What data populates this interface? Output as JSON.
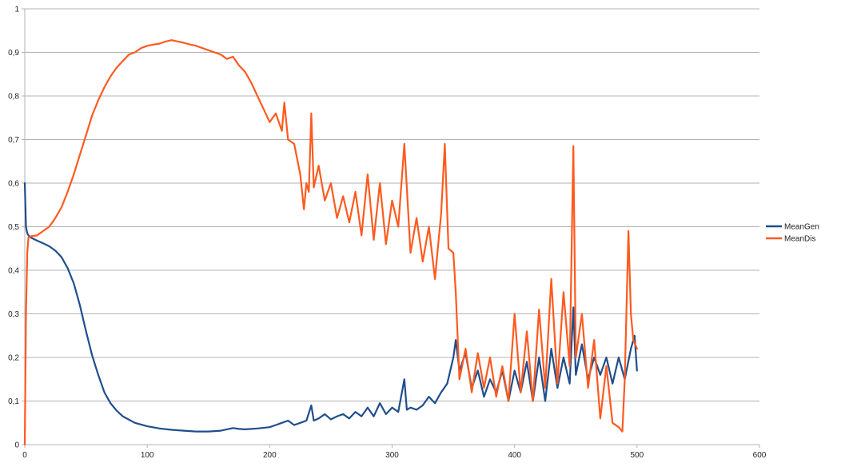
{
  "chart_data": {
    "type": "line",
    "title": "",
    "xlabel": "",
    "ylabel": "",
    "xlim": [
      0,
      600
    ],
    "ylim": [
      0,
      1
    ],
    "xticks": [
      0,
      100,
      200,
      300,
      400,
      500,
      600
    ],
    "yticks": [
      0,
      0.1,
      0.2,
      0.3,
      0.4,
      0.5,
      0.6,
      0.7,
      0.8,
      0.9,
      1
    ],
    "xtick_labels": [
      "0",
      "100",
      "200",
      "300",
      "400",
      "500",
      "600"
    ],
    "ytick_labels": [
      "0",
      "0,1",
      "0,2",
      "0,3",
      "0,4",
      "0,5",
      "0,6",
      "0,7",
      "0,8",
      "0,9",
      "1"
    ],
    "grid": "horizontal",
    "legend_position": "right",
    "series": [
      {
        "name": "MeanGen",
        "color": "#1f4e8c",
        "x": [
          0,
          1,
          2,
          3,
          5,
          10,
          15,
          20,
          25,
          30,
          35,
          40,
          45,
          50,
          55,
          60,
          65,
          70,
          75,
          80,
          90,
          100,
          110,
          120,
          130,
          140,
          150,
          160,
          170,
          175,
          180,
          190,
          200,
          205,
          210,
          215,
          220,
          225,
          230,
          234,
          236,
          240,
          245,
          250,
          255,
          260,
          265,
          270,
          275,
          280,
          285,
          290,
          295,
          300,
          305,
          310,
          312,
          315,
          320,
          325,
          330,
          335,
          340,
          345,
          350,
          352,
          355,
          360,
          365,
          370,
          375,
          380,
          385,
          390,
          395,
          400,
          405,
          410,
          415,
          420,
          425,
          430,
          435,
          440,
          445,
          448,
          450,
          455,
          460,
          465,
          470,
          475,
          480,
          485,
          490,
          495,
          498,
          500
        ],
        "values": [
          0.6,
          0.5,
          0.485,
          0.48,
          0.475,
          0.468,
          0.462,
          0.455,
          0.445,
          0.43,
          0.405,
          0.37,
          0.32,
          0.26,
          0.205,
          0.16,
          0.12,
          0.095,
          0.078,
          0.065,
          0.05,
          0.042,
          0.037,
          0.034,
          0.032,
          0.03,
          0.03,
          0.032,
          0.038,
          0.036,
          0.035,
          0.037,
          0.04,
          0.045,
          0.05,
          0.055,
          0.045,
          0.05,
          0.055,
          0.09,
          0.055,
          0.06,
          0.07,
          0.058,
          0.065,
          0.07,
          0.06,
          0.075,
          0.065,
          0.085,
          0.065,
          0.095,
          0.07,
          0.085,
          0.075,
          0.15,
          0.08,
          0.085,
          0.08,
          0.09,
          0.11,
          0.095,
          0.12,
          0.14,
          0.2,
          0.24,
          0.17,
          0.21,
          0.13,
          0.17,
          0.11,
          0.15,
          0.12,
          0.17,
          0.1,
          0.17,
          0.12,
          0.19,
          0.1,
          0.2,
          0.1,
          0.22,
          0.13,
          0.2,
          0.14,
          0.315,
          0.16,
          0.23,
          0.15,
          0.2,
          0.16,
          0.2,
          0.14,
          0.2,
          0.15,
          0.22,
          0.25,
          0.17
        ]
      },
      {
        "name": "MeanDis",
        "color": "#ff5a1f",
        "x": [
          0,
          1,
          2,
          3,
          5,
          10,
          15,
          20,
          25,
          30,
          35,
          40,
          45,
          50,
          55,
          60,
          65,
          70,
          75,
          80,
          85,
          90,
          95,
          100,
          105,
          110,
          115,
          120,
          125,
          130,
          135,
          140,
          145,
          150,
          155,
          160,
          165,
          170,
          175,
          180,
          185,
          190,
          195,
          200,
          205,
          210,
          212,
          215,
          220,
          225,
          228,
          230,
          232,
          234,
          236,
          240,
          245,
          250,
          255,
          260,
          265,
          270,
          275,
          280,
          285,
          290,
          295,
          300,
          305,
          310,
          315,
          320,
          325,
          330,
          335,
          340,
          343,
          346,
          350,
          352,
          355,
          360,
          365,
          370,
          375,
          380,
          385,
          390,
          395,
          400,
          405,
          410,
          415,
          420,
          425,
          430,
          435,
          440,
          445,
          448,
          450,
          455,
          460,
          465,
          470,
          475,
          480,
          485,
          488,
          490,
          493,
          495,
          497,
          500
        ],
        "values": [
          0.0,
          0.3,
          0.44,
          0.475,
          0.478,
          0.48,
          0.49,
          0.5,
          0.52,
          0.545,
          0.58,
          0.62,
          0.665,
          0.71,
          0.755,
          0.79,
          0.82,
          0.845,
          0.865,
          0.88,
          0.895,
          0.9,
          0.91,
          0.915,
          0.918,
          0.92,
          0.925,
          0.928,
          0.925,
          0.922,
          0.918,
          0.915,
          0.91,
          0.905,
          0.9,
          0.895,
          0.885,
          0.89,
          0.87,
          0.855,
          0.83,
          0.8,
          0.77,
          0.74,
          0.76,
          0.72,
          0.785,
          0.7,
          0.69,
          0.62,
          0.54,
          0.6,
          0.58,
          0.76,
          0.59,
          0.64,
          0.56,
          0.6,
          0.52,
          0.57,
          0.51,
          0.58,
          0.48,
          0.62,
          0.47,
          0.6,
          0.46,
          0.56,
          0.5,
          0.69,
          0.44,
          0.52,
          0.42,
          0.5,
          0.38,
          0.53,
          0.69,
          0.45,
          0.44,
          0.35,
          0.15,
          0.22,
          0.12,
          0.21,
          0.13,
          0.2,
          0.11,
          0.18,
          0.1,
          0.3,
          0.12,
          0.26,
          0.1,
          0.31,
          0.13,
          0.38,
          0.14,
          0.35,
          0.18,
          0.685,
          0.2,
          0.3,
          0.13,
          0.24,
          0.06,
          0.18,
          0.05,
          0.04,
          0.03,
          0.15,
          0.49,
          0.3,
          0.24,
          0.22
        ]
      }
    ]
  }
}
